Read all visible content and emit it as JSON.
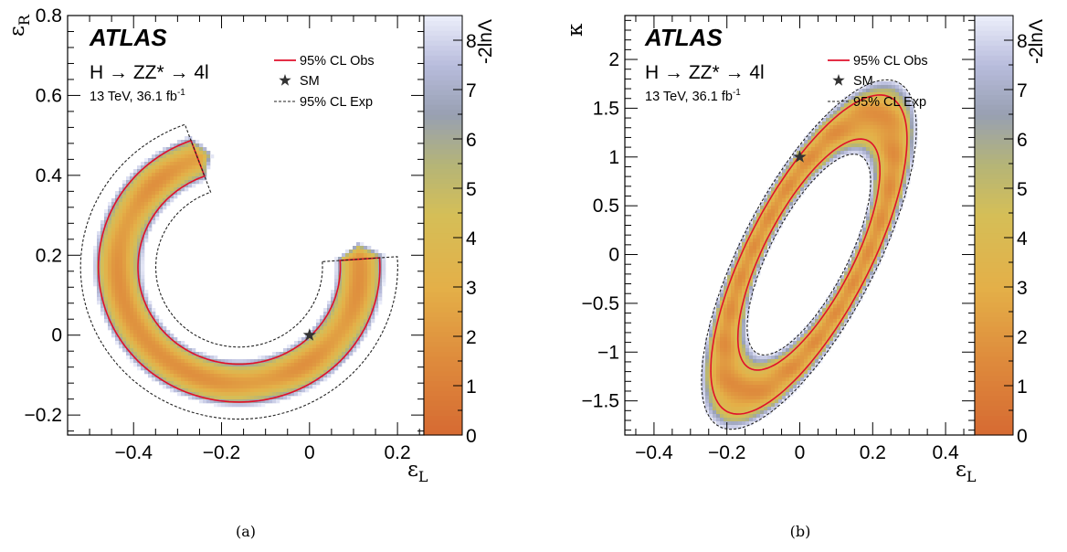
{
  "chart_data": [
    {
      "type": "heatmap",
      "panel_caption": "(a)",
      "experiment": "ATLAS",
      "process": "H → ZZ* → 4l",
      "energy_lumi": "13 TeV, 36.1 fb",
      "lumi_sup": "-1",
      "xlabel": "ε",
      "xlabel_sub": "L",
      "ylabel": "ε",
      "ylabel_sub": "R",
      "xlim": [
        -0.55,
        0.26
      ],
      "ylim": [
        -0.25,
        0.8
      ],
      "xticks": [
        -0.4,
        -0.2,
        0,
        0.2
      ],
      "xtick_labels": [
        "−0.4",
        "−0.2",
        "0",
        "0.2"
      ],
      "yticks": [
        -0.2,
        0,
        0.2,
        0.4,
        0.6,
        0.8
      ],
      "ytick_labels": [
        "−0.2",
        "0",
        "0.2",
        "0.4",
        "0.6",
        "0.8"
      ],
      "z_label": "-2lnΛ",
      "z_range": [
        0,
        8.5
      ],
      "z_ticks": [
        0,
        1,
        2,
        3,
        4,
        5,
        6,
        7,
        8
      ],
      "legend": [
        "95% CL Obs",
        "SM",
        "95% CL Exp"
      ],
      "sm_point": {
        "x": 0,
        "y": 0
      },
      "region": {
        "shape": "arc",
        "cx": -0.16,
        "cy": 0.17,
        "rx": 0.275,
        "ry": 0.29,
        "half_width": 0.045,
        "start_deg": 110,
        "end_deg": 360,
        "min_z": 2.0
      }
    },
    {
      "type": "heatmap",
      "panel_caption": "(b)",
      "experiment": "ATLAS",
      "process": "H → ZZ* → 4l",
      "energy_lumi": "13 TeV, 36.1 fb",
      "lumi_sup": "-1",
      "xlabel": "ε",
      "xlabel_sub": "L",
      "ylabel": "κ",
      "ylabel_sub": "",
      "xlim": [
        -0.48,
        0.48
      ],
      "ylim": [
        -1.85,
        2.45
      ],
      "xticks": [
        -0.4,
        -0.2,
        0,
        0.2,
        0.4
      ],
      "xtick_labels": [
        "−0.4",
        "−0.2",
        "0",
        "0.2",
        "0.4"
      ],
      "yticks": [
        -1.5,
        -1,
        -0.5,
        0,
        0.5,
        1,
        1.5,
        2
      ],
      "ytick_labels": [
        "−1.5",
        "−1",
        "−0.5",
        "0",
        "0.5",
        "1",
        "1.5",
        "2"
      ],
      "z_label": "-2lnΛ",
      "z_range": [
        0,
        8.5
      ],
      "z_ticks": [
        0,
        1,
        2,
        3,
        4,
        5,
        6,
        7,
        8
      ],
      "legend": [
        "95% CL Obs",
        "SM",
        "95% CL Exp"
      ],
      "sm_point": {
        "x": 0,
        "y": 1
      },
      "region": {
        "shape": "ring",
        "cx": 0.025,
        "cy": 0.0,
        "a": 1.62,
        "b": 0.6,
        "tilt": 58,
        "half_width": 0.15,
        "min_z": 1.8
      }
    }
  ]
}
